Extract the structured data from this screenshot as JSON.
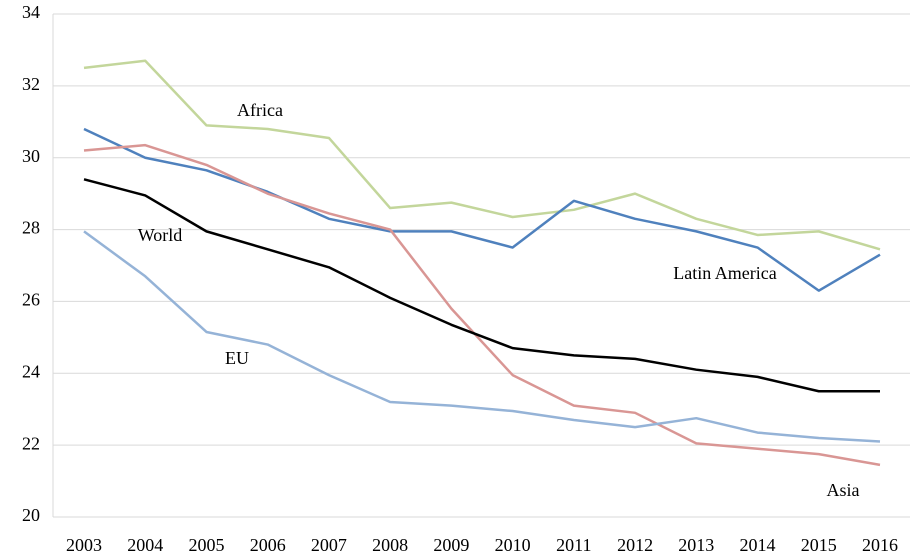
{
  "chart_data": {
    "type": "line",
    "categories": [
      "2003",
      "2004",
      "2005",
      "2006",
      "2007",
      "2008",
      "2009",
      "2010",
      "2011",
      "2012",
      "2013",
      "2014",
      "2015",
      "2016"
    ],
    "series": [
      {
        "name": "Africa",
        "color": "#c3d69b",
        "values": [
          32.5,
          32.7,
          30.9,
          30.8,
          30.55,
          28.6,
          28.75,
          28.35,
          28.55,
          29.0,
          28.3,
          27.85,
          27.95,
          27.45
        ]
      },
      {
        "name": "Latin America",
        "color": "#4f81bd",
        "values": [
          30.8,
          30.0,
          29.65,
          29.05,
          28.3,
          27.95,
          27.95,
          27.5,
          28.8,
          28.3,
          27.95,
          27.5,
          26.3,
          27.3
        ]
      },
      {
        "name": "Asia",
        "color": "#d99694",
        "values": [
          30.2,
          30.35,
          29.8,
          29.0,
          28.45,
          28.0,
          25.8,
          23.95,
          23.1,
          22.9,
          22.05,
          21.9,
          21.75,
          21.45
        ]
      },
      {
        "name": "World",
        "color": "#000000",
        "values": [
          29.4,
          28.95,
          27.95,
          27.45,
          26.95,
          26.1,
          25.35,
          24.7,
          24.5,
          24.4,
          24.1,
          23.9,
          23.5,
          23.5
        ]
      },
      {
        "name": "EU",
        "color": "#95b3d7",
        "values": [
          27.95,
          26.7,
          25.15,
          24.8,
          23.95,
          23.2,
          23.1,
          22.95,
          22.7,
          22.5,
          22.75,
          22.35,
          22.2,
          22.1
        ]
      }
    ],
    "ylim": [
      20,
      34
    ],
    "yticks": [
      20,
      22,
      24,
      26,
      28,
      30,
      32,
      34
    ],
    "grid": true
  }
}
